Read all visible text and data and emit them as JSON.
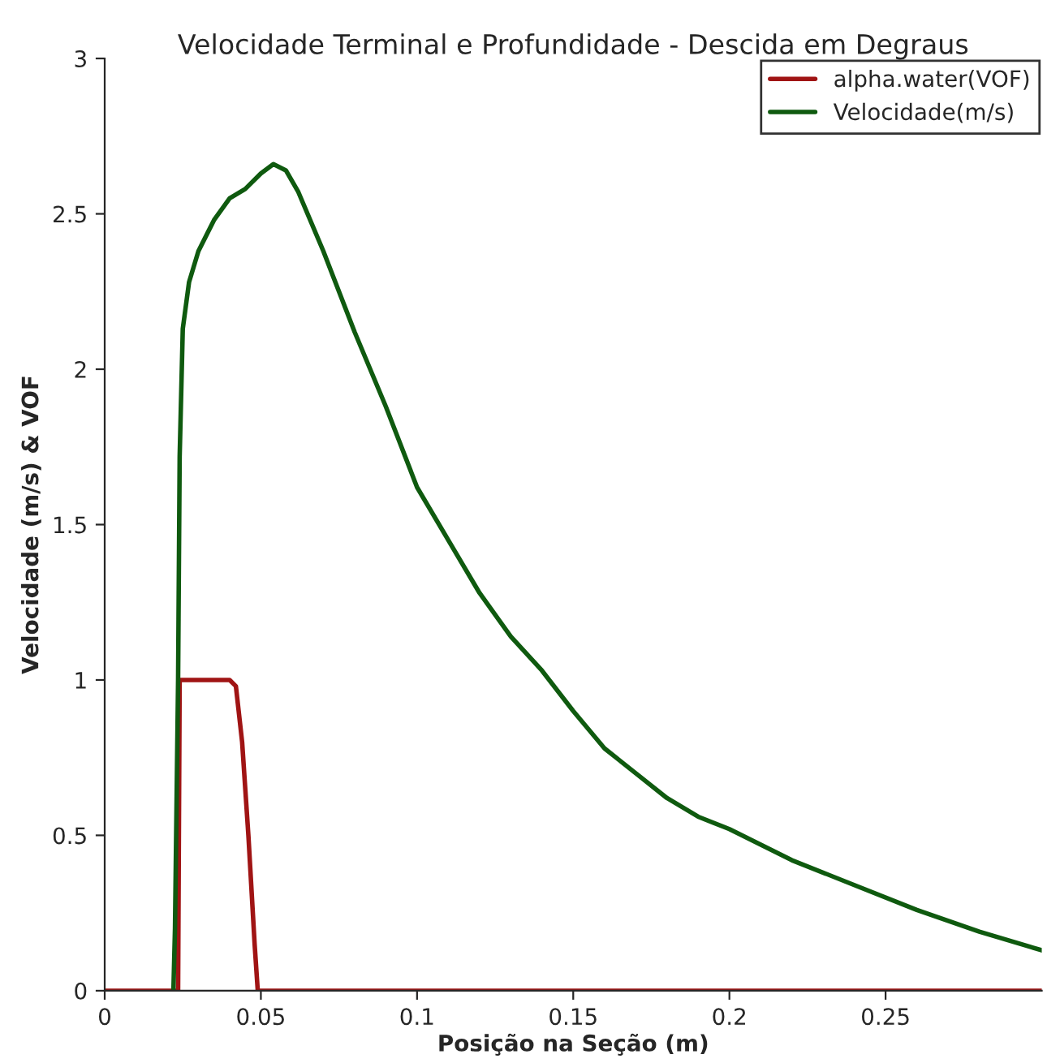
{
  "chart_data": {
    "type": "line",
    "title": "Velocidade Terminal e Profundidade - Descida em Degraus",
    "xlabel": "Posição na Seção (m)",
    "ylabel": "Velocidade (m/s) & VOF",
    "xlim": [
      0,
      0.3
    ],
    "xticks": [
      0,
      0.05,
      0.1,
      0.15,
      0.2,
      0.25
    ],
    "ylim": [
      0,
      3
    ],
    "yticks": [
      0,
      0.5,
      1,
      1.5,
      2,
      2.5,
      3
    ],
    "grid": false,
    "legend": "top right",
    "series": [
      {
        "name": "alpha.water(VOF)",
        "color": "#a01414",
        "x": [
          0,
          0.0235,
          0.024,
          0.03,
          0.04,
          0.042,
          0.044,
          0.046,
          0.048,
          0.049,
          0.1,
          0.2,
          0.3
        ],
        "values": [
          0,
          0,
          1.0,
          1.0,
          1.0,
          0.98,
          0.8,
          0.5,
          0.15,
          0,
          0,
          0,
          0
        ]
      },
      {
        "name": "Velocidade(m/s)",
        "color": "#0f5a0f",
        "x": [
          0.022,
          0.0225,
          0.0235,
          0.024,
          0.025,
          0.027,
          0.03,
          0.035,
          0.04,
          0.045,
          0.05,
          0.054,
          0.058,
          0.062,
          0.07,
          0.08,
          0.09,
          0.1,
          0.11,
          0.12,
          0.13,
          0.14,
          0.15,
          0.16,
          0.17,
          0.18,
          0.19,
          0.2,
          0.22,
          0.24,
          0.26,
          0.28,
          0.3
        ],
        "values": [
          0,
          0.2,
          1.0,
          1.72,
          2.13,
          2.28,
          2.38,
          2.48,
          2.55,
          2.58,
          2.63,
          2.66,
          2.64,
          2.57,
          2.38,
          2.12,
          1.88,
          1.62,
          1.45,
          1.28,
          1.14,
          1.03,
          0.9,
          0.78,
          0.7,
          0.62,
          0.56,
          0.52,
          0.42,
          0.34,
          0.26,
          0.19,
          0.13
        ]
      }
    ]
  }
}
